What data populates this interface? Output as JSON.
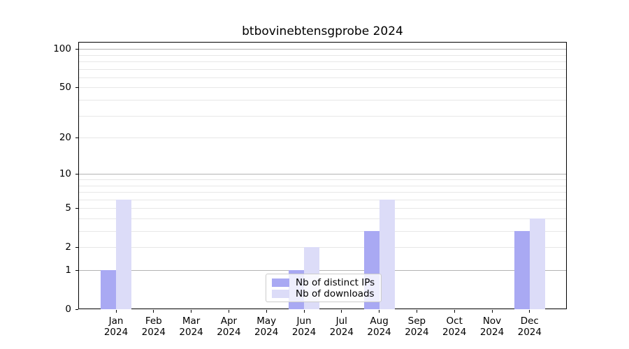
{
  "title": "btbovinebtensgprobe 2024",
  "chart_data": {
    "type": "bar",
    "title": "btbovinebtensgprobe 2024",
    "categories": [
      "Jan",
      "Feb",
      "Mar",
      "Apr",
      "May",
      "Jun",
      "Jul",
      "Aug",
      "Sep",
      "Oct",
      "Nov",
      "Dec"
    ],
    "year_label": "2024",
    "series": [
      {
        "name": "Nb of distinct IPs",
        "color": "#a9a9f3",
        "values": [
          1,
          0,
          0,
          0,
          0,
          1,
          0,
          3,
          0,
          0,
          0,
          3
        ]
      },
      {
        "name": "Nb of downloads",
        "color": "#dcdcf8",
        "values": [
          6,
          0,
          0,
          0,
          0,
          2,
          0,
          6,
          0,
          0,
          0,
          4
        ]
      }
    ],
    "xlabel": "",
    "ylabel": "",
    "yscale": "log1p",
    "ylim": [
      0,
      100
    ],
    "y_tick_values": [
      0,
      1,
      2,
      5,
      10,
      20,
      50,
      100
    ],
    "y_tick_labels": [
      "0",
      "1",
      "2",
      "5",
      "10",
      "20",
      "50",
      "100"
    ],
    "y_major_gridlines": [
      1,
      10,
      100
    ],
    "y_minor_gridlines": [
      2,
      3,
      4,
      5,
      6,
      7,
      8,
      9,
      20,
      30,
      40,
      50,
      60,
      70,
      80,
      90
    ],
    "grid": true,
    "legend_position": "lower center"
  }
}
